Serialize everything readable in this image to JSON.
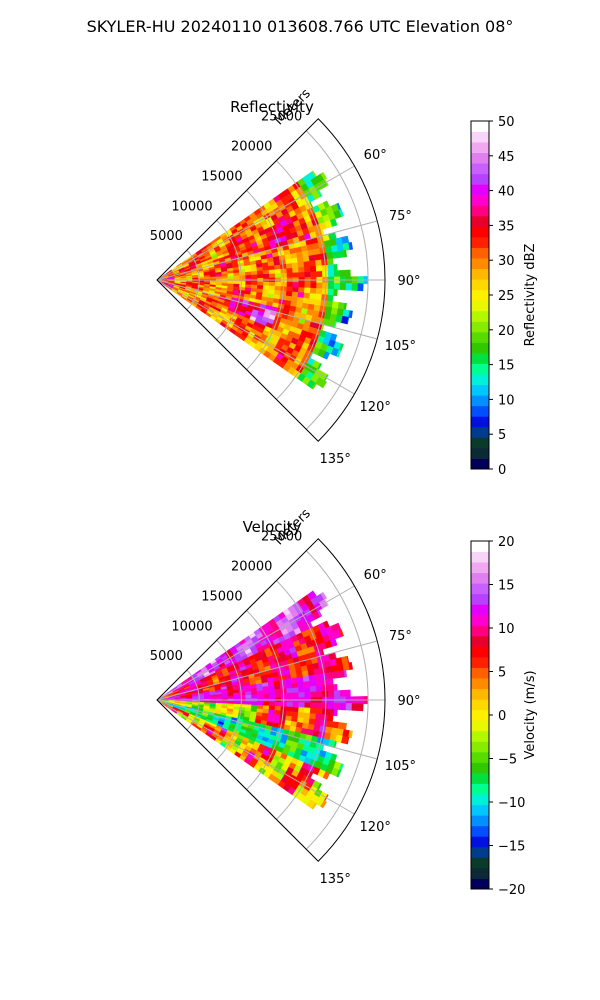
{
  "suptitle": "SKYLER-HU  20240110  013608.766 UTC Elevation 08°",
  "colors": {
    "reflectivity_scale": [
      "#00005a",
      "#0b2a36",
      "#0a3a2a",
      "#003c8c",
      "#0010e0",
      "#0050ff",
      "#0090ff",
      "#00c8ff",
      "#00f0d8",
      "#00ff90",
      "#00e040",
      "#30c800",
      "#58dc00",
      "#88ec00",
      "#b4f800",
      "#e8f800",
      "#fff000",
      "#ffd800",
      "#ffb800",
      "#ff8c00",
      "#ff6000",
      "#ff2000",
      "#ff0000",
      "#e8002c",
      "#ff0080",
      "#ff00d0",
      "#e400ff",
      "#b840ff",
      "#c860ff",
      "#e080f0",
      "#f0a8f0",
      "#f8d4f8",
      "#ffffff"
    ],
    "velocity_scale": [
      "#00005a",
      "#0b2a36",
      "#0a3a2a",
      "#003c8c",
      "#0010e0",
      "#0050ff",
      "#0090ff",
      "#00c8ff",
      "#00f0d8",
      "#00ff90",
      "#00e040",
      "#30c800",
      "#58dc00",
      "#88ec00",
      "#b4f800",
      "#e8f800",
      "#fff000",
      "#ffd800",
      "#ffb800",
      "#ff8c00",
      "#ff6000",
      "#ff2000",
      "#ff0000",
      "#e8002c",
      "#ff0080",
      "#ff00d0",
      "#e400ff",
      "#b840ff",
      "#c860ff",
      "#e080f0",
      "#f0a8f0",
      "#f8d4f8",
      "#ffffff"
    ]
  },
  "chart_data": [
    {
      "type": "heatmap",
      "projection": "polar-sector",
      "field": "reflectivity",
      "title": "Reflectivity",
      "range_label": "Meters",
      "range_ticks": [
        5000,
        10000,
        15000,
        20000,
        25000
      ],
      "range_tick_labels": [
        "5000",
        "10000",
        "15000",
        "20000",
        "25000"
      ],
      "range_limit": [
        0,
        27000
      ],
      "data_extent_m": 23500,
      "azimuth_ticks": [
        60,
        75,
        90,
        105,
        120,
        135
      ],
      "azimuth_tick_labels": [
        "60°",
        "75°",
        "90°",
        "105°",
        "120°",
        "135°"
      ],
      "azimuth_limit": [
        45,
        135
      ],
      "data_azimuth_extent": [
        55,
        125
      ],
      "grid": true,
      "colorbar": {
        "label": "Reflectivity dBZ",
        "vmin": 0,
        "vmax": 50,
        "ticks": [
          0,
          5,
          10,
          15,
          20,
          25,
          30,
          35,
          40,
          45,
          50
        ],
        "tick_labels": [
          "0",
          "5",
          "10",
          "15",
          "20",
          "25",
          "30",
          "35",
          "40",
          "45",
          "50"
        ]
      },
      "pattern_note": "mostly 25-40 dBZ (yellow/orange/red), patches above 40 dBZ (magenta), lower 15-25 dBZ at outer edge"
    },
    {
      "type": "heatmap",
      "projection": "polar-sector",
      "field": "velocity",
      "title": "Velocity",
      "range_label": "Meters",
      "range_ticks": [
        5000,
        10000,
        15000,
        20000,
        25000
      ],
      "range_tick_labels": [
        "5000",
        "10000",
        "15000",
        "20000",
        "25000"
      ],
      "range_limit": [
        0,
        27000
      ],
      "data_extent_m": 23500,
      "azimuth_ticks": [
        60,
        75,
        90,
        105,
        120,
        135
      ],
      "azimuth_tick_labels": [
        "60°",
        "75°",
        "90°",
        "105°",
        "120°",
        "135°"
      ],
      "azimuth_limit": [
        45,
        135
      ],
      "data_azimuth_extent": [
        55,
        125
      ],
      "grid": true,
      "colorbar": {
        "label": "Velocity (m/s)",
        "vmin": -20,
        "vmax": 20,
        "ticks": [
          -20,
          -15,
          -10,
          -5,
          0,
          5,
          10,
          15,
          20
        ],
        "tick_labels": [
          "−20",
          "−15",
          "−10",
          "−5",
          "0",
          "5",
          "10",
          "15",
          "20"
        ]
      },
      "pattern_note": "red/magenta (+10 to +15 m/s) band near 90° azimuth and to the north, green/cyan (-5 to -12 m/s) bands to the south, yellow near 0 m/s"
    }
  ]
}
